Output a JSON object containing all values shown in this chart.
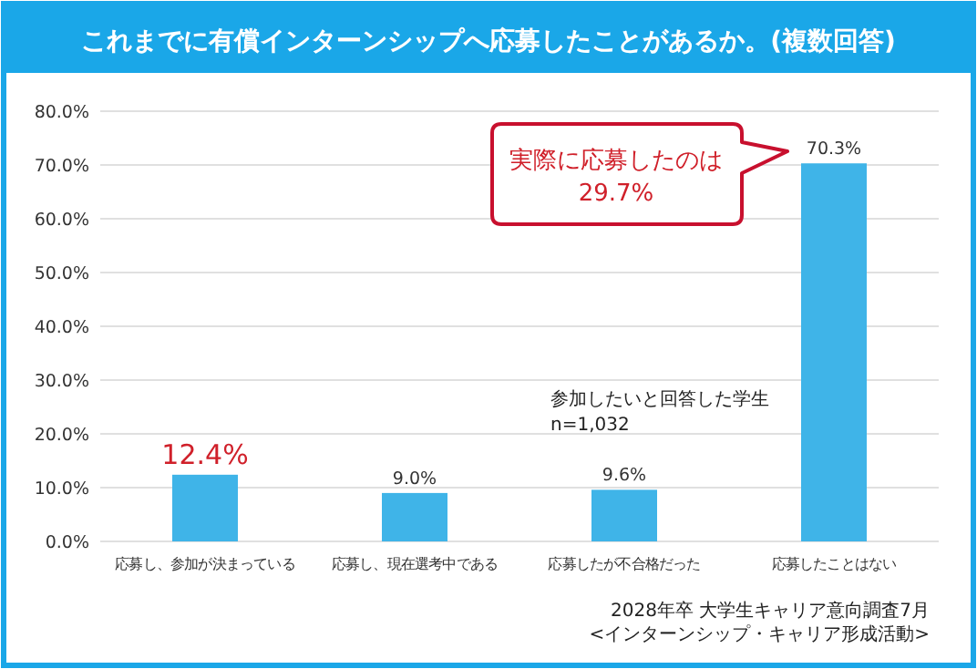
{
  "chart_data": {
    "type": "bar",
    "title": "これまでに有償インターンシップへ応募したことがあるか。(複数回答)",
    "categories": [
      "応募し、参加が決まっている",
      "応募し、現在選考中である",
      "応募したが不合格だった",
      "応募したことはない"
    ],
    "values": [
      12.4,
      9.0,
      9.6,
      70.3
    ],
    "value_labels": [
      "12.4%",
      "9.0%",
      "9.6%",
      "70.3%"
    ],
    "color": "#3fb4e8",
    "ylim": [
      0,
      80
    ],
    "yticks": [
      {
        "value": 0,
        "label": "0.0%"
      },
      {
        "value": 10,
        "label": "10.0%"
      },
      {
        "value": 20,
        "label": "20.0%"
      },
      {
        "value": 30,
        "label": "30.0%"
      },
      {
        "value": 40,
        "label": "40.0%"
      },
      {
        "value": 50,
        "label": "50.0%"
      },
      {
        "value": 60,
        "label": "60.0%"
      },
      {
        "value": 70,
        "label": "70.0%"
      },
      {
        "value": 80,
        "label": "80.0%"
      }
    ],
    "grid": "y",
    "annotations": [
      "実際に応募したのは\n29.7%",
      "参加したいと回答した学生\nn=1,032",
      "2028年卒 大学生キャリア意向調査7月\n<インターンシップ・キャリア形成活動>"
    ]
  }
}
